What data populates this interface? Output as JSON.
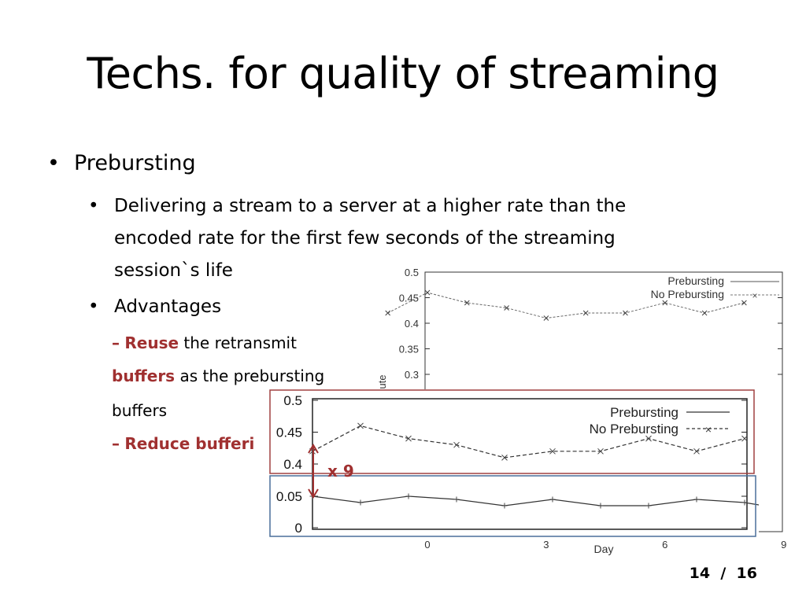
{
  "slide": {
    "title": "Techs. for quality of streaming",
    "bullet1": "Prebursting",
    "bullet1_sub1": "Delivering a stream to a server at a higher rate than the encoded rate for the first few seconds of the streaming session`s life",
    "bullet1_sub2": "Advantages",
    "adv1_prefix": "–",
    "adv1_bold": "Reuse",
    "adv1_rest": "the retransmit",
    "adv1_bold2": "buffers",
    "adv1_rest2": "as the prebursting",
    "adv1_line3": "buffers",
    "adv2_prefix": "–",
    "adv2_bold": "Reduce bufferi",
    "annotation": "x 9",
    "page_current": "14",
    "page_sep": "/",
    "page_total": "16"
  },
  "colors": {
    "accent_red": "#a03030",
    "frame_red": "#a04040",
    "frame_blue": "#4a6f9a"
  },
  "chart_data": [
    {
      "type": "line",
      "xlabel": "Day",
      "ylabel": "r Minute",
      "yticks": [
        "0.5",
        "0.45",
        "0.4",
        "0.35",
        "0.3"
      ],
      "xticks": [
        "0",
        "3",
        "6",
        "9"
      ],
      "ylim": [
        0.3,
        0.5
      ],
      "series": [
        {
          "name": "Prebursting",
          "marker": "+",
          "x": [],
          "values": []
        },
        {
          "name": "No Prebursting",
          "marker": "x",
          "x": [
            -1,
            0,
            1,
            2,
            3,
            4,
            5,
            6,
            7,
            8
          ],
          "values": [
            0.42,
            0.46,
            0.44,
            0.43,
            0.41,
            0.42,
            0.42,
            0.44,
            0.42,
            0.44
          ]
        }
      ],
      "legend": "top-right"
    },
    {
      "type": "line",
      "yticks": [
        "0.5",
        "0.45",
        "0.4",
        "0.05",
        "0"
      ],
      "axis_break": "between 0.4 and 0.05",
      "series": [
        {
          "name": "Prebursting",
          "marker": "+",
          "x": [
            0,
            1,
            2,
            3,
            4,
            5,
            6,
            7,
            8,
            9,
            10
          ],
          "values": [
            0.05,
            0.04,
            0.05,
            0.045,
            0.035,
            0.045,
            0.035,
            0.035,
            0.045,
            0.04,
            0.03
          ]
        },
        {
          "name": "No Prebursting",
          "marker": "x",
          "x": [
            0,
            1,
            2,
            3,
            4,
            5,
            6,
            7,
            8,
            9
          ],
          "values": [
            0.42,
            0.46,
            0.44,
            0.43,
            0.41,
            0.42,
            0.42,
            0.44,
            0.42,
            0.44
          ]
        }
      ],
      "legend": "top-right"
    }
  ]
}
